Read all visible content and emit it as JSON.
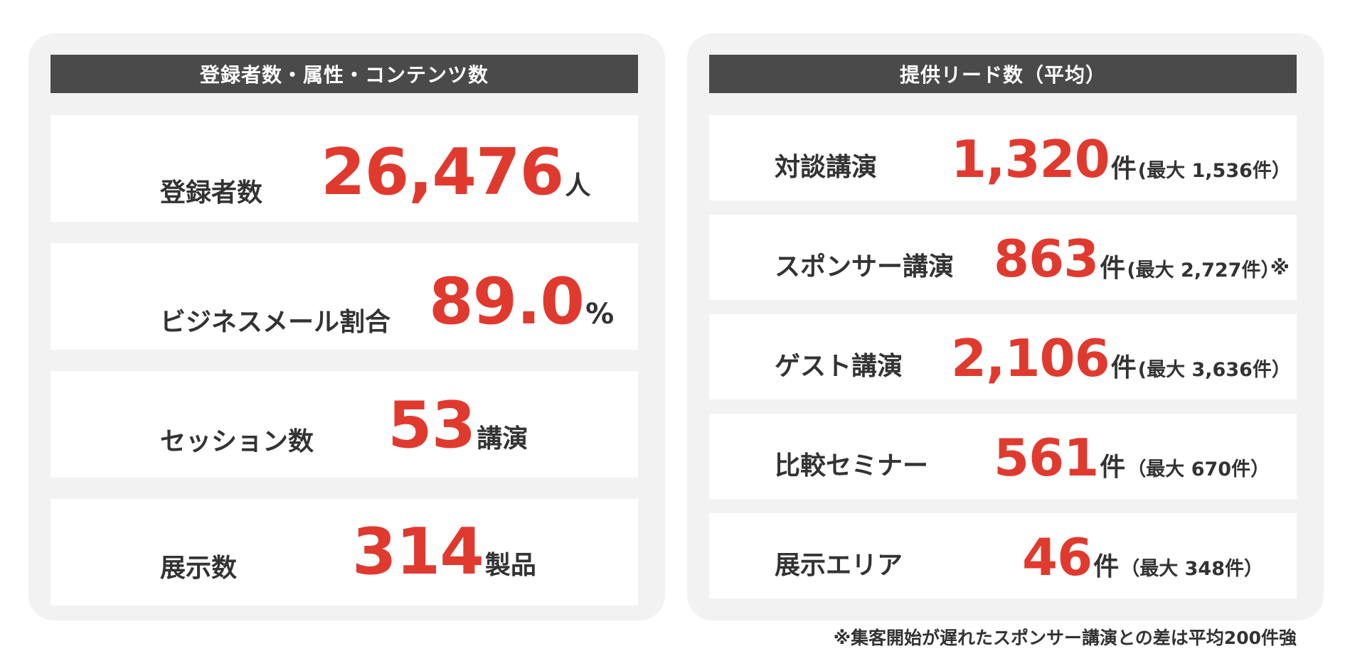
{
  "left_panel": {
    "title": "登録者数・属性・コンテンツ数",
    "rows": [
      {
        "label": "登録者数",
        "value": "26,476",
        "unit": "人"
      },
      {
        "label": "ビジネスメール割合",
        "value": "89.0",
        "unit": "%"
      },
      {
        "label": "セッション数",
        "value": "53",
        "unit": "講演"
      },
      {
        "label": "展示数",
        "value": "314",
        "unit": "製品"
      }
    ]
  },
  "right_panel": {
    "title": "提供リード数（平均）",
    "rows": [
      {
        "label": "対談講演",
        "value": "1,320",
        "unit": "件",
        "max_note": "(最大 1,536件）"
      },
      {
        "label": "スポンサー講演",
        "value": "863",
        "unit": "件",
        "max_note": "(最大 2,727件）",
        "mark": "※"
      },
      {
        "label": "ゲスト講演",
        "value": "2,106",
        "unit": "件",
        "max_note": "(最大 3,636件）"
      },
      {
        "label": "比較セミナー",
        "value": "561",
        "unit": "件",
        "max_note": "（最大 670件）"
      },
      {
        "label": "展示エリア",
        "value": "46",
        "unit": "件",
        "max_note": "（最大 348件）"
      }
    ]
  },
  "footnote": "※集客開始が遅れたスポンサー講演との差は平均200件強",
  "colors": {
    "accent": "#e03a2f",
    "header_bg": "#4a4a4a",
    "panel_bg": "#f2f2f2",
    "text": "#333333"
  }
}
